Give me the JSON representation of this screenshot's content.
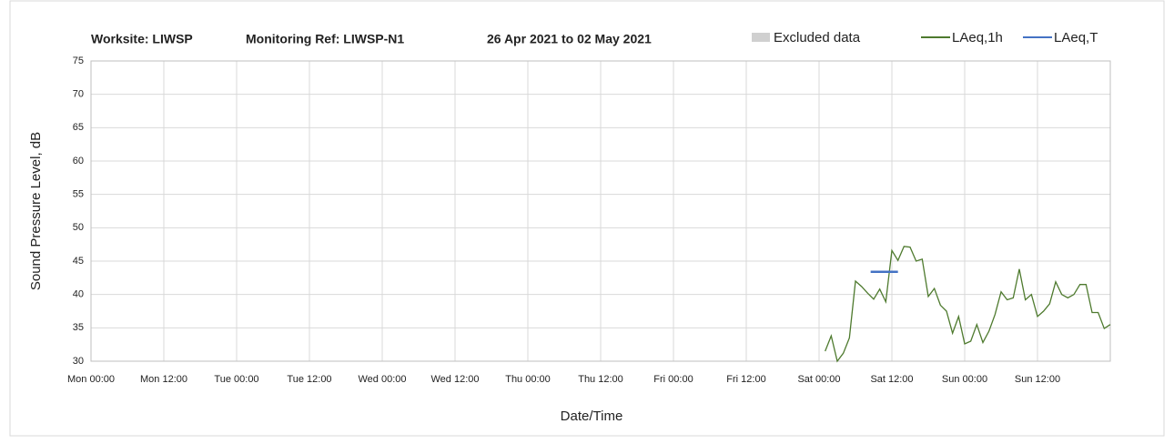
{
  "chart_data": {
    "type": "line",
    "title": [
      "Worksite: LIWSP",
      "Monitoring Ref: LIWSP-N1",
      "26 Apr 2021 to 02 May 2021"
    ],
    "xlabel": "Date/Time",
    "ylabel": "Sound Pressure Level, dB",
    "xlim": [
      0,
      168
    ],
    "ylim": [
      30,
      75
    ],
    "xticks": [
      {
        "value": 0,
        "label": "Mon 00:00"
      },
      {
        "value": 12,
        "label": "Mon 12:00"
      },
      {
        "value": 24,
        "label": "Tue 00:00"
      },
      {
        "value": 36,
        "label": "Tue 12:00"
      },
      {
        "value": 48,
        "label": "Wed 00:00"
      },
      {
        "value": 60,
        "label": "Wed 12:00"
      },
      {
        "value": 72,
        "label": "Thu 00:00"
      },
      {
        "value": 84,
        "label": "Thu 12:00"
      },
      {
        "value": 96,
        "label": "Fri 00:00"
      },
      {
        "value": 108,
        "label": "Fri 12:00"
      },
      {
        "value": 120,
        "label": "Sat 00:00"
      },
      {
        "value": 132,
        "label": "Sat 12:00"
      },
      {
        "value": 144,
        "label": "Sun 00:00"
      },
      {
        "value": 156,
        "label": "Sun 12:00"
      }
    ],
    "yticks": [
      30,
      35,
      40,
      45,
      50,
      55,
      60,
      65,
      70,
      75
    ],
    "grid": true,
    "legend": "top-right",
    "series": [
      {
        "name": "Excluded data",
        "color": "#d0d0d0",
        "kind": "area",
        "x": [],
        "values": []
      },
      {
        "name": "LAeq,1h",
        "color": "#4e7a2e",
        "x": [
          121,
          122,
          123,
          124,
          125,
          126,
          127,
          128,
          129,
          130,
          131,
          132,
          133,
          134,
          135,
          136,
          137,
          138,
          139,
          140,
          141,
          142,
          143,
          144,
          145,
          146,
          147,
          148,
          149,
          150,
          151,
          152,
          153,
          154,
          155,
          156,
          157,
          158,
          159,
          160,
          161,
          162,
          163,
          164,
          165,
          166,
          167,
          168
        ],
        "values": [
          31.5,
          33.8,
          30,
          31.2,
          33.5,
          42,
          41.2,
          40.2,
          39.3,
          40.8,
          38.9,
          46.6,
          45.1,
          47.2,
          47.1,
          45,
          45.3,
          39.7,
          40.9,
          38.4,
          37.5,
          34.2,
          36.7,
          32.6,
          33,
          35.5,
          32.8,
          34.5,
          37,
          40.4,
          39.2,
          39.5,
          43.8,
          39.2,
          40,
          36.7,
          37.5,
          38.6,
          41.9,
          40,
          39.5,
          40,
          41.5,
          41.5,
          37.3,
          37.3,
          34.9,
          35.5
        ]
      },
      {
        "name": "LAeq,T",
        "color": "#4472c4",
        "x": [
          128.5,
          133
        ],
        "values": [
          43.4,
          43.4
        ]
      }
    ]
  }
}
